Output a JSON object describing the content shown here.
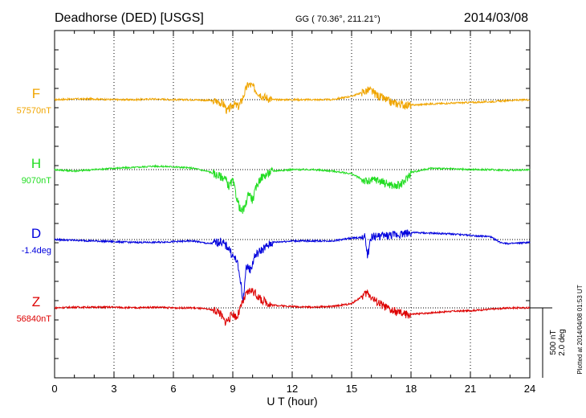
{
  "chart_data": {
    "type": "line",
    "title": "Deadhorse (DED)  [USGS]",
    "coords": "GG ( 70.36°, 211.21°)",
    "date": "2014/03/08",
    "xlabel": "U T (hour)",
    "xlim": [
      0,
      24
    ],
    "xticks": [
      "0",
      "3",
      "6",
      "9",
      "12",
      "15",
      "18",
      "21",
      "24"
    ],
    "scale_label_1": "500 nT",
    "scale_label_2": "2.0 deg",
    "plotted_note": "Plotted at 2014/04/08 01:53 UT",
    "series": [
      {
        "name": "F",
        "baseline_label": "57570nT",
        "color": "#f0a500",
        "unit_range": "nT",
        "offset": 0,
        "x": [
          0,
          1,
          2,
          3,
          4,
          5,
          6,
          7,
          7.8,
          8.3,
          8.6,
          8.7,
          8.9,
          9.0,
          9.3,
          9.5,
          9.7,
          9.8,
          10.0,
          10.2,
          10.5,
          11,
          12,
          13,
          14,
          15,
          15.5,
          15.9,
          16.3,
          17,
          17.8,
          18.5,
          19,
          20,
          21,
          22,
          23,
          24
        ],
        "y": [
          0,
          5,
          5,
          0,
          0,
          5,
          0,
          0,
          -5,
          -15,
          -40,
          -85,
          -55,
          -30,
          -50,
          10,
          90,
          110,
          95,
          60,
          25,
          0,
          0,
          0,
          0,
          25,
          50,
          70,
          30,
          -20,
          -40,
          -35,
          -30,
          -25,
          -20,
          -15,
          -5,
          0
        ]
      },
      {
        "name": "H",
        "baseline_label": "9070nT",
        "color": "#22dd22",
        "unit_range": "nT",
        "offset": 0,
        "x": [
          0,
          1,
          2,
          3,
          4,
          5,
          6,
          7,
          7.8,
          8.2,
          8.6,
          8.8,
          9.0,
          9.2,
          9.4,
          9.6,
          9.8,
          10.0,
          10.2,
          10.4,
          11,
          12,
          13,
          14,
          15,
          15.8,
          16.2,
          16.6,
          17.2,
          17.6,
          18,
          19,
          20,
          21,
          22,
          23,
          24
        ],
        "y": [
          0,
          -10,
          0,
          10,
          15,
          25,
          20,
          10,
          -15,
          -40,
          -60,
          -120,
          -80,
          -200,
          -300,
          -280,
          -160,
          -220,
          -120,
          -60,
          -10,
          0,
          0,
          -10,
          -30,
          -90,
          -70,
          -90,
          -120,
          -100,
          -20,
          10,
          5,
          0,
          0,
          -5,
          0
        ]
      },
      {
        "name": "D",
        "baseline_label": "-1.4deg",
        "color": "#0000dd",
        "unit_range": "deg",
        "offset": 0,
        "x": [
          0,
          1,
          2,
          3,
          4,
          5,
          6,
          7,
          7.8,
          8.4,
          8.8,
          9.0,
          9.2,
          9.4,
          9.5,
          9.7,
          9.9,
          10.1,
          10.4,
          11,
          12,
          13,
          14,
          15,
          15.7,
          15.8,
          16,
          17,
          18,
          19,
          20,
          21,
          22,
          22.5,
          23,
          24
        ],
        "y": [
          0,
          -5,
          -10,
          -15,
          -20,
          -20,
          -15,
          -10,
          -30,
          -15,
          -60,
          -120,
          -150,
          -300,
          -450,
          -180,
          -220,
          -120,
          -80,
          -20,
          -10,
          -10,
          -10,
          10,
          15,
          -120,
          20,
          30,
          50,
          45,
          40,
          30,
          20,
          -20,
          -30,
          -20
        ]
      },
      {
        "name": "Z",
        "baseline_label": "56840nT",
        "color": "#dd0000",
        "unit_range": "nT",
        "offset": 0,
        "x": [
          0,
          1,
          2,
          3,
          4,
          5,
          6,
          7,
          7.8,
          8.3,
          8.6,
          8.8,
          9.0,
          9.2,
          9.5,
          9.7,
          9.9,
          10.1,
          10.4,
          11,
          12,
          13,
          14,
          15,
          15.5,
          15.8,
          16.2,
          17,
          17.8,
          18.5,
          19,
          20,
          21,
          22,
          23,
          24
        ],
        "y": [
          0,
          5,
          5,
          5,
          0,
          5,
          0,
          0,
          -10,
          -25,
          -100,
          -80,
          -40,
          -70,
          40,
          100,
          130,
          110,
          60,
          20,
          10,
          5,
          10,
          30,
          80,
          110,
          50,
          -20,
          -50,
          -40,
          -35,
          -25,
          -20,
          -10,
          0,
          0
        ]
      }
    ]
  }
}
